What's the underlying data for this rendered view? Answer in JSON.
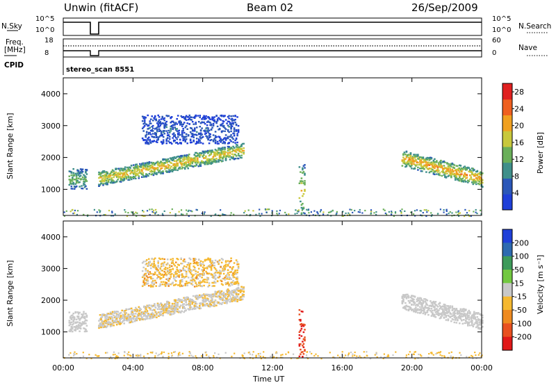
{
  "header": {
    "station": "Unwin (fitACF)",
    "beam": "Beam 02",
    "date": "26/Sep/2009"
  },
  "panel_labels": {
    "nsky": "N.Sky",
    "nsearch": "N.Search",
    "freq_line1": "Freq.",
    "freq_line2": "[MHz]",
    "nave": "Nave",
    "cpid": "CPID",
    "cpid_value": "stereo_scan 8551",
    "nsky_ticks": [
      "10^5",
      "10^0"
    ],
    "nsearch_ticks": [
      "10^5",
      "10^0"
    ],
    "freq_ticks": [
      "18",
      "8"
    ],
    "nave_ticks": [
      "60",
      "0"
    ]
  },
  "chart_data": [
    {
      "type": "heatmap",
      "name": "power",
      "ylabel": "Slant Range [km]",
      "xlabel": "Time UT",
      "xlim": [
        0,
        24
      ],
      "ylim": [
        180,
        4500
      ],
      "x_ticks": [
        "00:00",
        "04:00",
        "08:00",
        "12:00",
        "16:00",
        "20:00",
        "00:00"
      ],
      "y_ticks": [
        1000,
        2000,
        3000,
        4000
      ],
      "colorbar": {
        "label": "Power [dB]",
        "ticks": [
          4,
          8,
          12,
          16,
          20,
          24,
          28
        ],
        "range": [
          0,
          30
        ],
        "colors": [
          "#1f3fd8",
          "#2b57b8",
          "#3f8f8a",
          "#6aaf5a",
          "#c8c83c",
          "#f0a020",
          "#ef6020",
          "#e02020"
        ]
      },
      "regions": [
        {
          "t0": 0.3,
          "t1": 1.3,
          "r_center": 1350,
          "r_width": 350,
          "power": 14
        },
        {
          "t0": 2.0,
          "t1": 10.3,
          "r_start": 1350,
          "r_end": 2250,
          "r_width": 250,
          "power": 20
        },
        {
          "t0": 4.5,
          "t1": 10.0,
          "r_center": 2900,
          "r_width": 500,
          "power": 6
        },
        {
          "t0": 13.5,
          "t1": 13.8,
          "r_center": 1000,
          "r_width": 900,
          "power": 18
        },
        {
          "t0": 19.4,
          "t1": 24.0,
          "r_start": 2000,
          "r_end": 1350,
          "r_width": 280,
          "power": 22
        }
      ]
    },
    {
      "type": "heatmap",
      "name": "velocity",
      "ylabel": "Slant Range [km]",
      "xlabel": "Time UT",
      "xlim": [
        0,
        24
      ],
      "ylim": [
        180,
        4500
      ],
      "x_ticks": [
        "00:00",
        "04:00",
        "08:00",
        "12:00",
        "16:00",
        "20:00",
        "00:00"
      ],
      "y_ticks": [
        1000,
        2000,
        3000,
        4000
      ],
      "colorbar": {
        "label": "Velocity [m s⁻¹]",
        "ticks": [
          200,
          100,
          50,
          15,
          -15,
          -50,
          -100,
          -200
        ],
        "colors": [
          "#1f3fd8",
          "#2d6ab0",
          "#3d9a5a",
          "#72c840",
          "#c8c8c8",
          "#f5b830",
          "#ee8a20",
          "#e85020",
          "#e01818"
        ]
      },
      "regions": [
        {
          "t0": 0.3,
          "t1": 1.3,
          "r_center": 1350,
          "r_width": 350,
          "velocity": 0
        },
        {
          "t0": 2.0,
          "t1": 10.3,
          "r_start": 1350,
          "r_end": 2250,
          "r_width": 250,
          "velocity": -10
        },
        {
          "t0": 4.5,
          "t1": 10.0,
          "r_center": 2900,
          "r_width": 500,
          "velocity": -20
        },
        {
          "t0": 13.5,
          "t1": 13.8,
          "r_center": 1000,
          "r_width": 900,
          "velocity": -150
        },
        {
          "t0": 19.4,
          "t1": 24.0,
          "r_start": 2000,
          "r_end": 1350,
          "r_width": 280,
          "velocity": 0
        }
      ]
    }
  ]
}
